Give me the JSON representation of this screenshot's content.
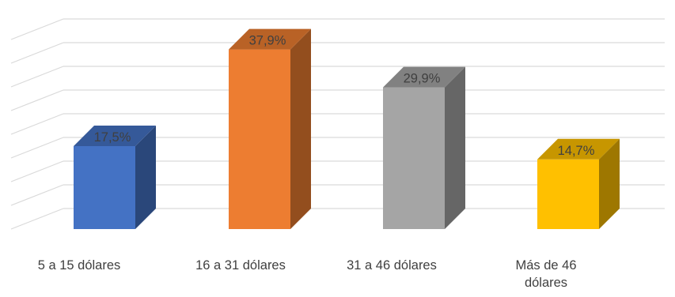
{
  "chart_data": {
    "type": "bar",
    "style": "3d-column",
    "categories": [
      "5 a 15 dólares",
      "16 a 31 dólares",
      "31 a 46 dólares",
      "Más de 46 dólares"
    ],
    "category_lines": [
      [
        "5 a 15 dólares"
      ],
      [
        "16 a 31 dólares"
      ],
      [
        "31 a 46 dólares"
      ],
      [
        "Más de 46",
        "dólares"
      ]
    ],
    "values": [
      17.5,
      37.9,
      29.9,
      14.7
    ],
    "data_labels": [
      "17,5%",
      "37,9%",
      "29,9%",
      "14,7%"
    ],
    "unit": "%",
    "ylim": [
      0,
      40
    ],
    "grid": true,
    "colors": [
      "#4472C4",
      "#ED7D31",
      "#A5A5A5",
      "#FFC000"
    ]
  }
}
